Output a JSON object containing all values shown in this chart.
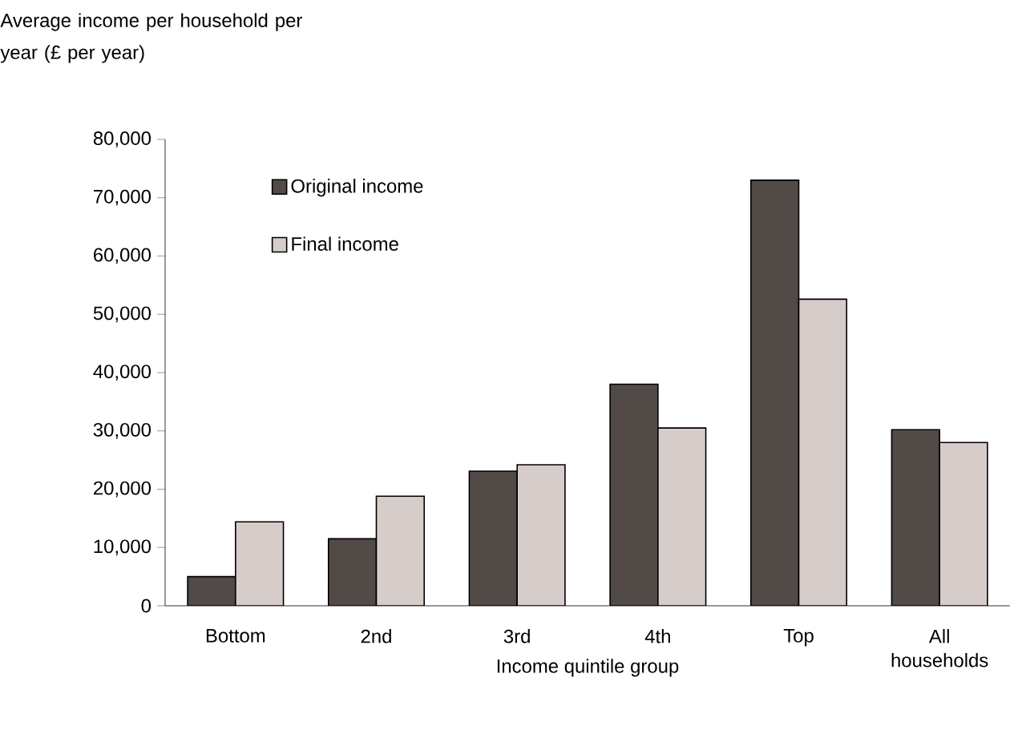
{
  "chart_data": {
    "type": "bar",
    "ylabel": "Average income per household per year (£ per year)",
    "xlabel": "Income quintile group",
    "categories": [
      "Bottom",
      "2nd",
      "3rd",
      "4th",
      "Top",
      "All households"
    ],
    "series": [
      {
        "name": "Original income",
        "color": "#524a47",
        "values": [
          5000,
          11500,
          23100,
          38000,
          73000,
          30200
        ]
      },
      {
        "name": "Final income",
        "color": "#d6ccc9",
        "values": [
          14400,
          18800,
          24200,
          30500,
          52600,
          28000
        ]
      }
    ],
    "ylim": [
      0,
      80000
    ],
    "yticks": [
      0,
      {
        "value": 10000,
        "label": "10,000"
      },
      {
        "value": 20000,
        "label": "20,000"
      },
      {
        "value": 30000,
        "label": "30,000"
      },
      {
        "value": 40000,
        "label": "40,000"
      },
      {
        "value": 50000,
        "label": "50,000"
      },
      {
        "value": 60000,
        "label": "60,000"
      },
      {
        "value": 70000,
        "label": "70,000"
      },
      {
        "value": 80000,
        "label": "80,000"
      }
    ],
    "legend": "top left",
    "grid": false
  }
}
